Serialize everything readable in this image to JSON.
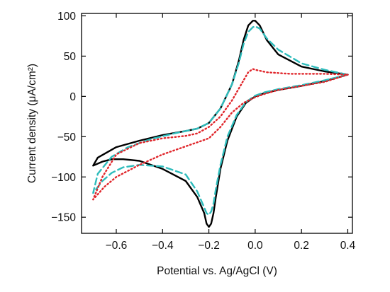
{
  "chart_data": {
    "type": "line",
    "title": "",
    "xlabel": "Potential vs. Ag/AgCl (V)",
    "ylabel": "Current density (μA/cm²)",
    "xlim": [
      -0.75,
      0.42
    ],
    "ylim": [
      -170,
      103
    ],
    "xticks": [
      -0.6,
      -0.4,
      -0.2,
      0,
      0.2,
      0.4
    ],
    "xtick_labels": [
      "−0.6",
      "−0.4",
      "−0.2",
      "0.0",
      "0.2",
      "0.4"
    ],
    "yticks": [
      -150,
      -100,
      -50,
      0,
      50,
      100
    ],
    "ytick_labels": [
      "−150",
      "−100",
      "−50",
      "0",
      "50",
      "100"
    ],
    "grid": false,
    "legend": "none",
    "series": [
      {
        "style": "solid",
        "color": "#000000",
        "points": [
          [
            0.4,
            27
          ],
          [
            0.3,
            19
          ],
          [
            0.2,
            13
          ],
          [
            0.1,
            8
          ],
          [
            0.04,
            4
          ],
          [
            0.0,
            0
          ],
          [
            -0.04,
            -8
          ],
          [
            -0.08,
            -25
          ],
          [
            -0.12,
            -55
          ],
          [
            -0.15,
            -90
          ],
          [
            -0.17,
            -125
          ],
          [
            -0.18,
            -145
          ],
          [
            -0.19,
            -158
          ],
          [
            -0.2,
            -162
          ],
          [
            -0.21,
            -158
          ],
          [
            -0.22,
            -145
          ],
          [
            -0.25,
            -125
          ],
          [
            -0.3,
            -105
          ],
          [
            -0.4,
            -90
          ],
          [
            -0.5,
            -80
          ],
          [
            -0.57,
            -78
          ],
          [
            -0.62,
            -78
          ],
          [
            -0.66,
            -81
          ],
          [
            -0.7,
            -86
          ],
          [
            -0.68,
            -76
          ],
          [
            -0.6,
            -63
          ],
          [
            -0.5,
            -55
          ],
          [
            -0.4,
            -48
          ],
          [
            -0.3,
            -43
          ],
          [
            -0.25,
            -40
          ],
          [
            -0.2,
            -33
          ],
          [
            -0.15,
            -15
          ],
          [
            -0.1,
            15
          ],
          [
            -0.07,
            45
          ],
          [
            -0.05,
            70
          ],
          [
            -0.03,
            88
          ],
          [
            -0.01,
            94
          ],
          [
            0.0,
            94
          ],
          [
            0.02,
            88
          ],
          [
            0.05,
            70
          ],
          [
            0.1,
            52
          ],
          [
            0.2,
            37
          ],
          [
            0.3,
            31
          ],
          [
            0.4,
            27
          ]
        ]
      },
      {
        "style": "dashed",
        "color": "#2ebcbc",
        "points": [
          [
            0.4,
            27
          ],
          [
            0.3,
            20
          ],
          [
            0.2,
            14
          ],
          [
            0.1,
            9
          ],
          [
            0.04,
            5
          ],
          [
            0.0,
            1
          ],
          [
            -0.04,
            -7
          ],
          [
            -0.08,
            -23
          ],
          [
            -0.12,
            -50
          ],
          [
            -0.15,
            -85
          ],
          [
            -0.17,
            -115
          ],
          [
            -0.18,
            -133
          ],
          [
            -0.19,
            -143
          ],
          [
            -0.2,
            -147
          ],
          [
            -0.21,
            -145
          ],
          [
            -0.22,
            -138
          ],
          [
            -0.25,
            -118
          ],
          [
            -0.3,
            -97
          ],
          [
            -0.4,
            -87
          ],
          [
            -0.5,
            -85
          ],
          [
            -0.57,
            -88
          ],
          [
            -0.62,
            -95
          ],
          [
            -0.66,
            -105
          ],
          [
            -0.7,
            -120
          ],
          [
            -0.68,
            -96
          ],
          [
            -0.62,
            -75
          ],
          [
            -0.55,
            -63
          ],
          [
            -0.45,
            -53
          ],
          [
            -0.35,
            -46
          ],
          [
            -0.25,
            -40
          ],
          [
            -0.2,
            -33
          ],
          [
            -0.15,
            -15
          ],
          [
            -0.1,
            15
          ],
          [
            -0.07,
            42
          ],
          [
            -0.05,
            65
          ],
          [
            -0.03,
            80
          ],
          [
            -0.01,
            86
          ],
          [
            0.0,
            87
          ],
          [
            0.02,
            84
          ],
          [
            0.05,
            72
          ],
          [
            0.1,
            58
          ],
          [
            0.2,
            41
          ],
          [
            0.3,
            33
          ],
          [
            0.4,
            27
          ]
        ]
      },
      {
        "style": "dotted",
        "color": "#e0262b",
        "points": [
          [
            0.4,
            27
          ],
          [
            0.3,
            18
          ],
          [
            0.2,
            13
          ],
          [
            0.1,
            8
          ],
          [
            0.04,
            3
          ],
          [
            0.0,
            -1
          ],
          [
            -0.05,
            -8
          ],
          [
            -0.1,
            -20
          ],
          [
            -0.15,
            -38
          ],
          [
            -0.2,
            -52
          ],
          [
            -0.3,
            -62
          ],
          [
            -0.4,
            -72
          ],
          [
            -0.5,
            -85
          ],
          [
            -0.6,
            -100
          ],
          [
            -0.65,
            -112
          ],
          [
            -0.7,
            -128
          ],
          [
            -0.66,
            -100
          ],
          [
            -0.6,
            -72
          ],
          [
            -0.5,
            -58
          ],
          [
            -0.4,
            -52
          ],
          [
            -0.3,
            -49
          ],
          [
            -0.25,
            -46
          ],
          [
            -0.2,
            -38
          ],
          [
            -0.15,
            -25
          ],
          [
            -0.1,
            -5
          ],
          [
            -0.06,
            15
          ],
          [
            -0.03,
            30
          ],
          [
            -0.01,
            34
          ],
          [
            0.0,
            33
          ],
          [
            0.05,
            30
          ],
          [
            0.15,
            28
          ],
          [
            0.3,
            28
          ],
          [
            0.4,
            27
          ]
        ]
      }
    ]
  }
}
